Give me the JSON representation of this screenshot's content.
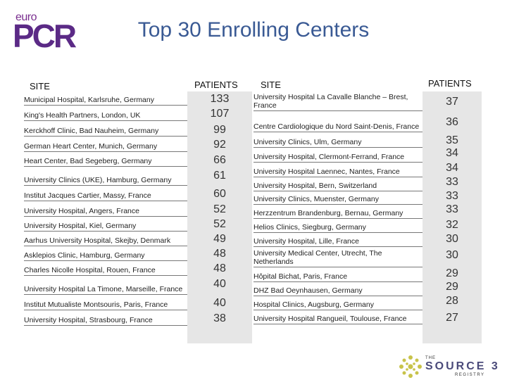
{
  "logo": {
    "euro": "euro",
    "pcr": "PCR"
  },
  "title": "Top 30 Enrolling Centers",
  "headers": {
    "site": "SITE",
    "patients": "PATIENTS"
  },
  "left": [
    {
      "site": "Municipal Hospital,  Karlsruhe, Germany",
      "patients": "133"
    },
    {
      "site": "King's Health Partners, London, UK",
      "patients": "107"
    },
    {
      "site": "Kerckhoff Clinic, Bad Nauheim, Germany",
      "patients": "99"
    },
    {
      "site": "German Heart Center, Munich, Germany",
      "patients": "92"
    },
    {
      "site": "Heart Center, Bad Segeberg, Germany",
      "patients": "66"
    },
    {
      "site": "University Clinics (UKE), Hamburg, Germany",
      "patients": "61"
    },
    {
      "site": "Institut Jacques Cartier, Massy, France",
      "patients": "60"
    },
    {
      "site": "University Hospital, Angers, France",
      "patients": "52"
    },
    {
      "site": "University Hospital,  Kiel, Germany",
      "patients": "52"
    },
    {
      "site": "Aarhus University Hospital, Skejby, Denmark",
      "patients": "49"
    },
    {
      "site": "Asklepios Clinic, Hamburg, Germany",
      "patients": "48"
    },
    {
      "site": "Charles Nicolle Hospital, Rouen, France",
      "patients": "48"
    },
    {
      "site": "University Hospital La Timone, Marseille, France",
      "patients": "40"
    },
    {
      "site": "Institut Mutualiste Montsouris, Paris, France",
      "patients": "40"
    },
    {
      "site": "University Hospital, Strasbourg, France",
      "patients": "38"
    }
  ],
  "right": [
    {
      "site": "University Hospital La Cavalle Blanche –  Brest, France",
      "patients": "37"
    },
    {
      "site": "Centre Cardiologique du Nord Saint-Denis, France",
      "patients": "36"
    },
    {
      "site": "University Clinics,  Ulm, Germany",
      "patients": "35"
    },
    {
      "site": "University Hospital, Clermont-Ferrand, France",
      "patients": "34"
    },
    {
      "site": "University Hospital Laennec, Nantes, France",
      "patients": "34"
    },
    {
      "site": "University Hospital, Bern, Switzerland",
      "patients": "33"
    },
    {
      "site": "University Clinics, Muenster, Germany",
      "patients": "33"
    },
    {
      "site": "Herzzentrum Brandenburg, Bernau, Germany",
      "patients": "33"
    },
    {
      "site": "Helios Clinics, Siegburg, Germany",
      "patients": "32"
    },
    {
      "site": "University Hospital,  Lille, France",
      "patients": "30"
    },
    {
      "site": "University Medical Center, Utrecht, The Netherlands",
      "patients": "30"
    },
    {
      "site": "Hôpital Bichat, Paris, France",
      "patients": "29"
    },
    {
      "site": "DHZ Bad Oeynhausen, Germany",
      "patients": "29"
    },
    {
      "site": "Hospital Clinics,  Augsburg, Germany",
      "patients": "28"
    },
    {
      "site": "University Hospital Rangueil, Toulouse,  France",
      "patients": "27"
    }
  ],
  "footer": {
    "the": "THE",
    "source": "SOURCE 3",
    "registry": "REGISTRY"
  },
  "colors": {
    "title": "#3a5a94",
    "logo": "#5b2a86",
    "patients_bg": "#e6e6e6"
  }
}
